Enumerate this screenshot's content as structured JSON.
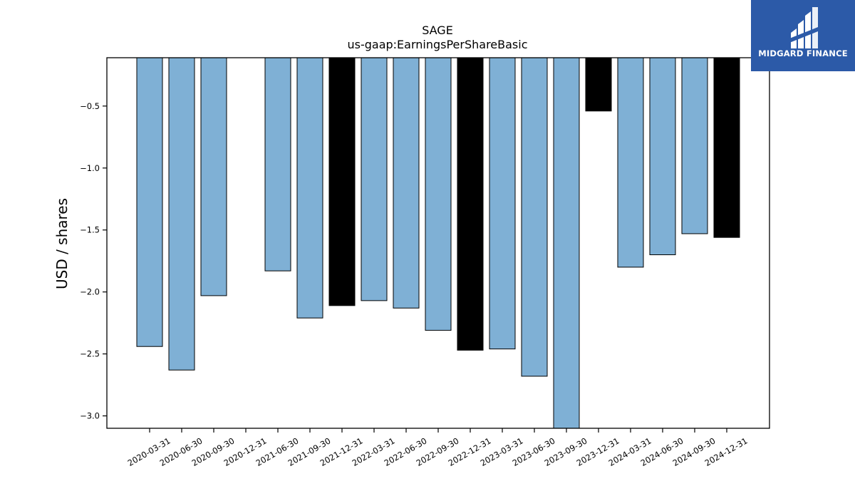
{
  "chart_data": {
    "type": "bar",
    "title": "SAGE",
    "subtitle": "us-gaap:EarningsPerShareBasic",
    "xlabel": "",
    "ylabel": "USD / shares",
    "ylim": [
      -3.1,
      -0.11
    ],
    "yticks": [
      -0.5,
      -1.0,
      -1.5,
      -2.0,
      -2.5,
      -3.0
    ],
    "ytick_labels": [
      "−0.5",
      "−1.0",
      "−1.5",
      "−2.0",
      "−2.5",
      "−3.0"
    ],
    "grid": false,
    "categories": [
      "2020-03-31",
      "2020-06-30",
      "2020-09-30",
      "2020-12-31",
      "2021-06-30",
      "2021-09-30",
      "2021-12-31",
      "2022-03-31",
      "2022-06-30",
      "2022-09-30",
      "2022-12-31",
      "2023-03-31",
      "2023-06-30",
      "2023-09-30",
      "2023-12-31",
      "2024-03-31",
      "2024-06-30",
      "2024-09-30",
      "2024-12-31"
    ],
    "values": [
      -2.44,
      -2.63,
      -2.03,
      null,
      -1.83,
      -2.21,
      -2.11,
      -2.07,
      -2.13,
      -2.31,
      -2.47,
      -2.46,
      -2.68,
      -3.1,
      -0.54,
      -1.8,
      -1.7,
      -1.53,
      -1.56
    ],
    "bar_colors": [
      "#7fb0d5",
      "#7fb0d5",
      "#7fb0d5",
      "#7fb0d5",
      "#7fb0d5",
      "#7fb0d5",
      "#000000",
      "#7fb0d5",
      "#7fb0d5",
      "#7fb0d5",
      "#000000",
      "#7fb0d5",
      "#7fb0d5",
      "#7fb0d5",
      "#000000",
      "#7fb0d5",
      "#7fb0d5",
      "#7fb0d5",
      "#000000"
    ]
  },
  "logo": {
    "text": "MIDGARD FINANCE",
    "background": "#2c5aa8"
  }
}
